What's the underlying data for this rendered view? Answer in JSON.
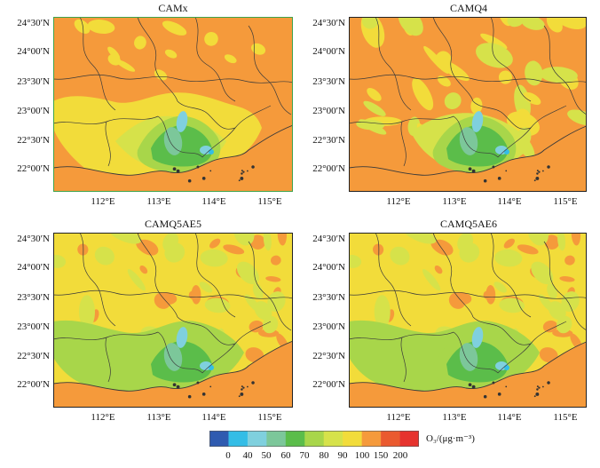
{
  "colors": {
    "background": "#f59a3b",
    "frame": "#222222",
    "boundary": "#3a3a3a",
    "first_panel_frame": "#3fa34d"
  },
  "panels": [
    {
      "title": "CAMx",
      "pattern": "camx"
    },
    {
      "title": "CAMQ4",
      "pattern": "camq4"
    },
    {
      "title": "CAMQ5AE5",
      "pattern": "camq5"
    },
    {
      "title": "CAMQ5AE6",
      "pattern": "camq5"
    }
  ],
  "lat_labels": [
    "24°30′N",
    "24°00′N",
    "23°30′N",
    "23°00′N",
    "22°30′N",
    "22°00′N"
  ],
  "lon_labels": [
    "112°E",
    "113°E",
    "114°E",
    "115°E"
  ],
  "legend": {
    "unit_label": "O₃/(μg·m⁻³)",
    "ticks": [
      "0",
      "40",
      "50",
      "60",
      "70",
      "80",
      "90",
      "100",
      "150",
      "200"
    ],
    "colors": [
      "#2f5bb0",
      "#33bde6",
      "#7fd0de",
      "#7cc79a",
      "#5bbd4a",
      "#a8d64a",
      "#d6e24a",
      "#f2dc3a",
      "#f59a3b",
      "#ea5a2f",
      "#e6332e"
    ]
  }
}
